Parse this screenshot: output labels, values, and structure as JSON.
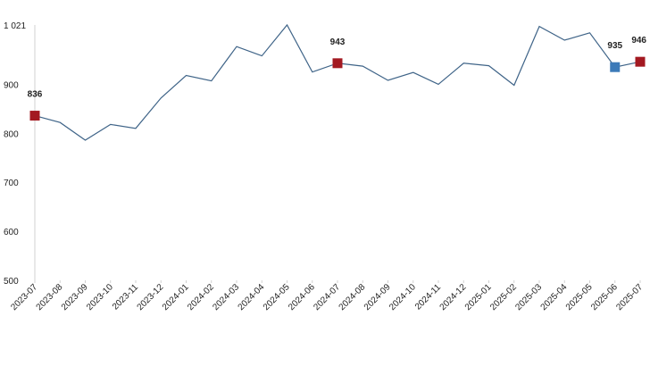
{
  "chart_data": {
    "type": "line",
    "categories": [
      "2023-07",
      "2023-08",
      "2023-09",
      "2023-10",
      "2023-11",
      "2023-12",
      "2024-01",
      "2024-02",
      "2024-03",
      "2024-04",
      "2024-05",
      "2024-06",
      "2024-07",
      "2024-08",
      "2024-09",
      "2024-10",
      "2024-11",
      "2024-12",
      "2025-01",
      "2025-02",
      "2025-03",
      "2025-04",
      "2025-05",
      "2025-06",
      "2025-07"
    ],
    "values": [
      836,
      822,
      786,
      818,
      810,
      872,
      918,
      907,
      977,
      958,
      1021,
      925,
      943,
      937,
      908,
      924,
      900,
      943,
      938,
      898,
      1018,
      990,
      1005,
      935,
      946
    ],
    "ylim": [
      500,
      1021
    ],
    "yticks": [
      {
        "value": 500,
        "label": "500"
      },
      {
        "value": 600,
        "label": "600"
      },
      {
        "value": 700,
        "label": "700"
      },
      {
        "value": 800,
        "label": "800"
      },
      {
        "value": 900,
        "label": "900"
      },
      {
        "value": 1021,
        "label": "1 021"
      }
    ],
    "highlighted_points": [
      {
        "index": 0,
        "label": "836",
        "color": "#a31921"
      },
      {
        "index": 12,
        "label": "943",
        "color": "#a31921"
      },
      {
        "index": 23,
        "label": "935",
        "color": "#3c7ab8"
      },
      {
        "index": 24,
        "label": "946",
        "color": "#a31921"
      }
    ],
    "line_color": "#3f6488",
    "grid": false,
    "title": "",
    "xlabel": "",
    "ylabel": ""
  }
}
